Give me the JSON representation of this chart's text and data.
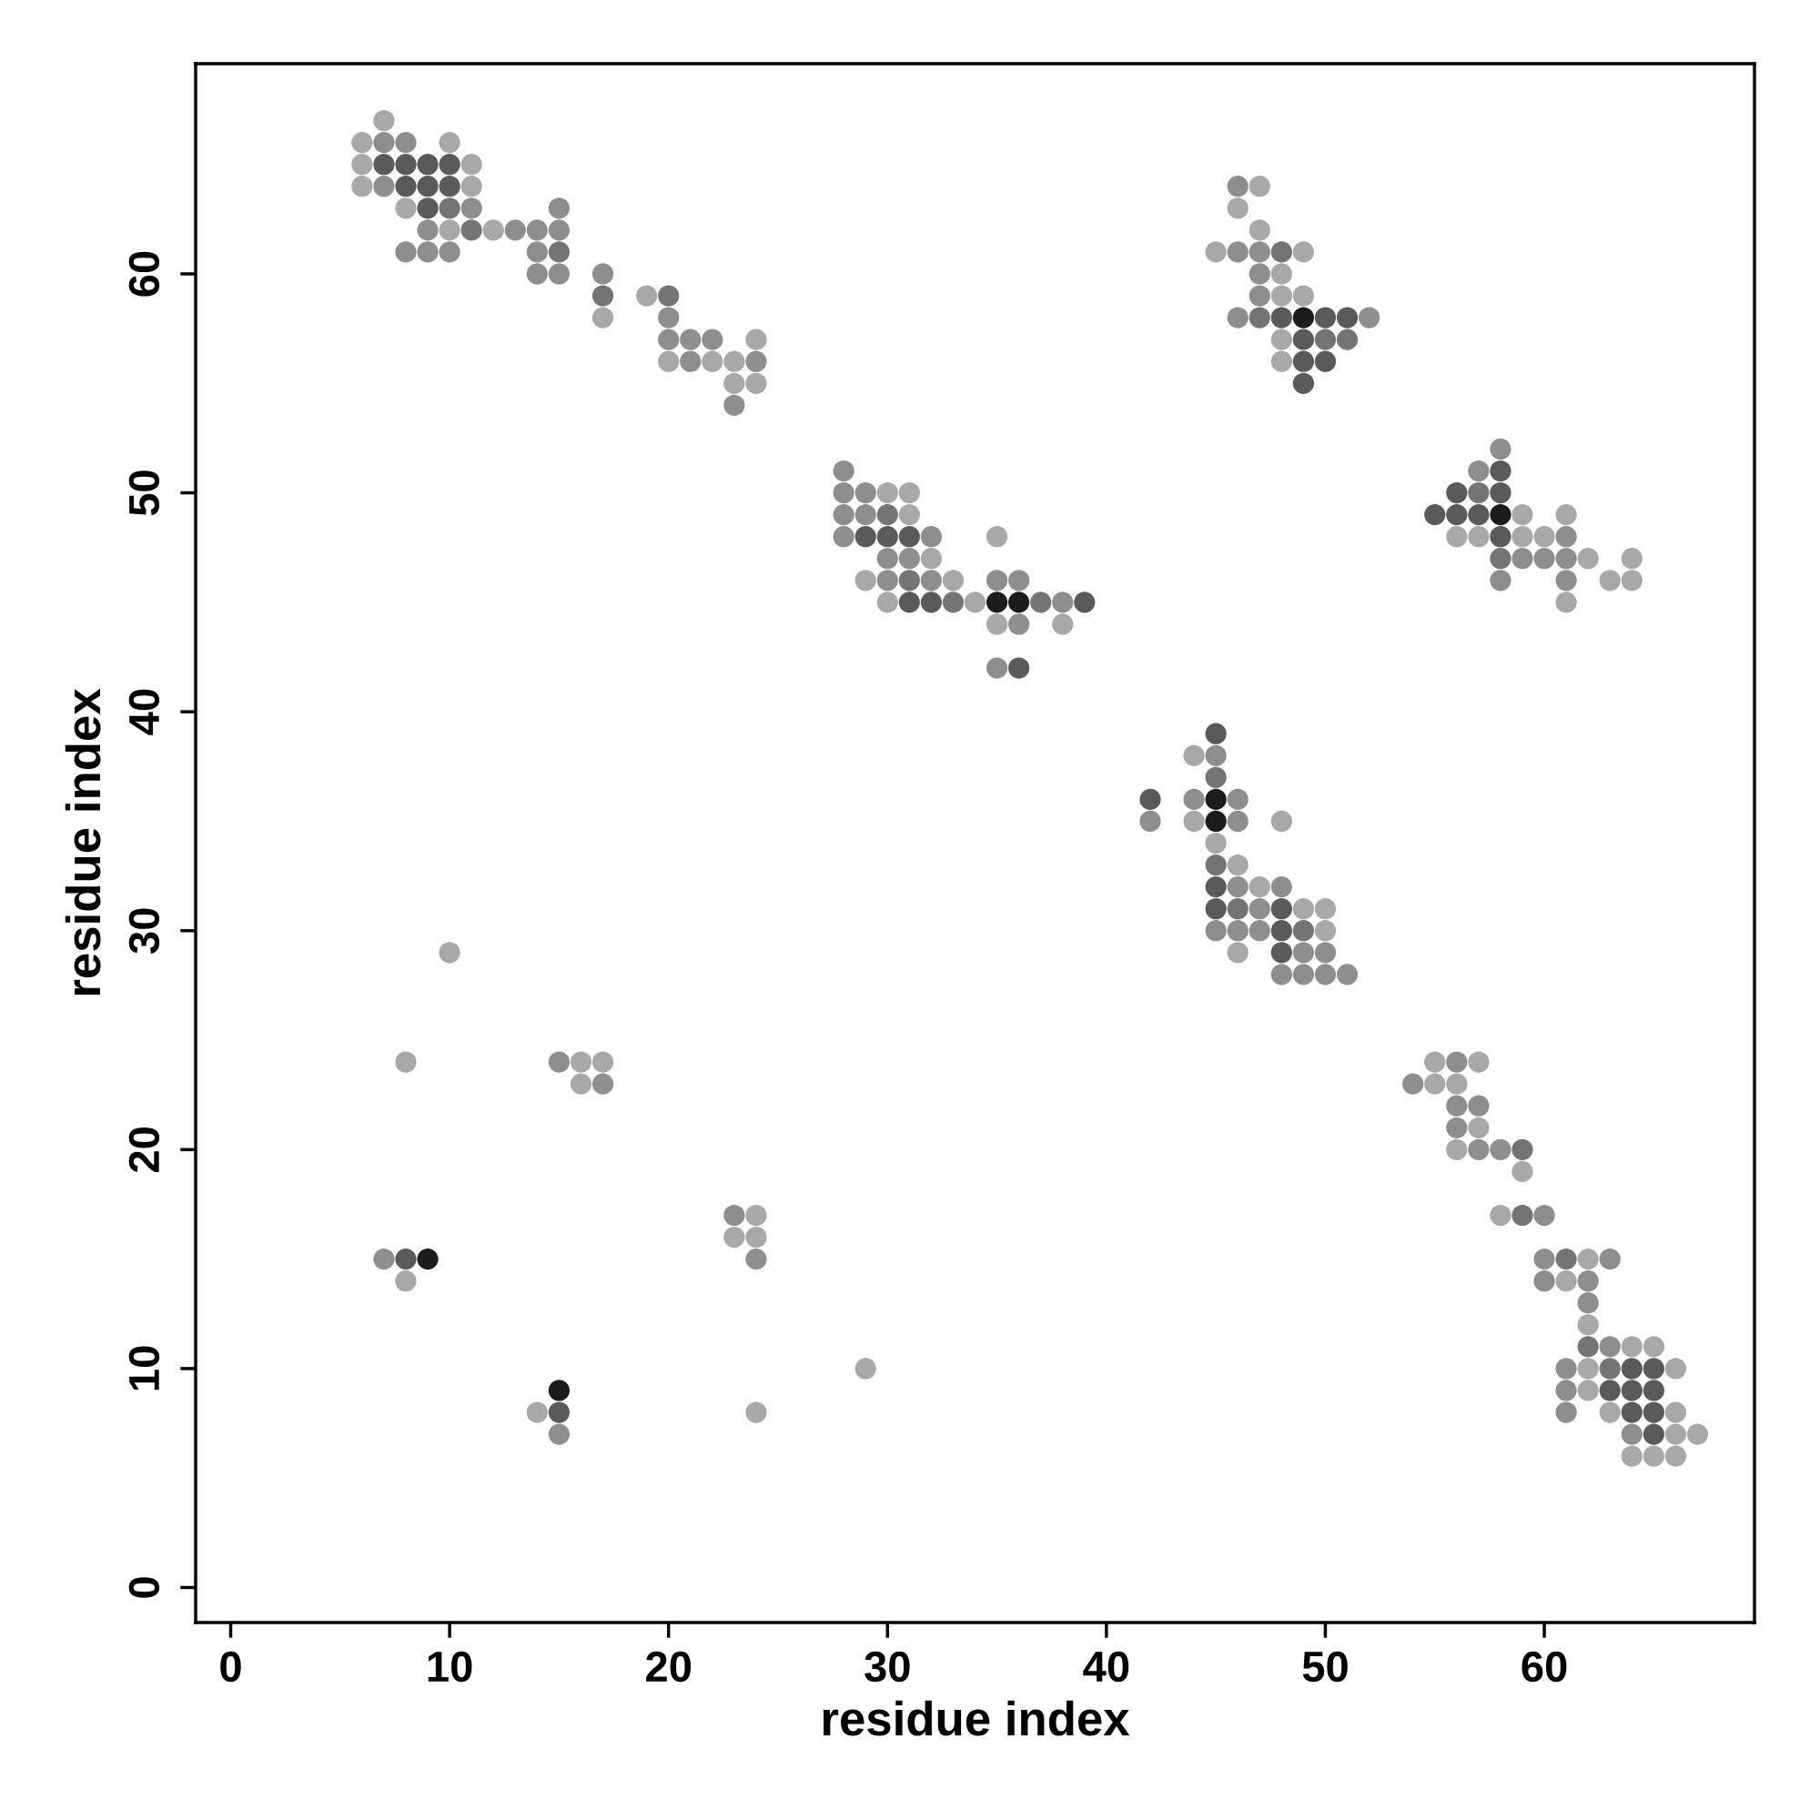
{
  "chart_data": {
    "type": "scatter",
    "xlabel": "residue index",
    "ylabel": "residue index",
    "xlim": [
      -1.6,
      69.6
    ],
    "ylim": [
      -1.6,
      69.6
    ],
    "xticks": [
      0,
      10,
      20,
      30,
      40,
      50,
      60
    ],
    "yticks": [
      0,
      10,
      20,
      30,
      40,
      50,
      60
    ],
    "grid": false,
    "marker": "circle",
    "series": [
      {
        "color": "#a8a8a8",
        "x": [
          7,
          6,
          10,
          6,
          11,
          6,
          11,
          8,
          10,
          12,
          19,
          17,
          24,
          20,
          22,
          23,
          23,
          24,
          30,
          31,
          31,
          32,
          29,
          33,
          35,
          30,
          34,
          35,
          38,
          47,
          46,
          47,
          45,
          49,
          48,
          48,
          49,
          48,
          48,
          59,
          61,
          56,
          57,
          59,
          60,
          62,
          64,
          63,
          64,
          61,
          44,
          44,
          48,
          45,
          46,
          47,
          49,
          50,
          50,
          46,
          55,
          57,
          55,
          56,
          57,
          56,
          59,
          58,
          62,
          61,
          62,
          64,
          65,
          62,
          66,
          62,
          63,
          66,
          66,
          67,
          64,
          65,
          66,
          10,
          8,
          16,
          17,
          16,
          24,
          23,
          24,
          8,
          29,
          14,
          24
        ],
        "values": [
          67,
          66,
          66,
          65,
          65,
          64,
          64,
          63,
          62,
          62,
          59,
          58,
          57,
          56,
          56,
          56,
          55,
          55,
          50,
          50,
          49,
          47,
          46,
          46,
          48,
          45,
          45,
          44,
          44,
          64,
          63,
          62,
          61,
          61,
          60,
          59,
          59,
          57,
          56,
          49,
          49,
          48,
          48,
          48,
          48,
          47,
          47,
          46,
          46,
          45,
          38,
          35,
          35,
          34,
          33,
          32,
          31,
          31,
          30,
          29,
          24,
          24,
          23,
          23,
          21,
          20,
          19,
          17,
          15,
          14,
          12,
          11,
          11,
          10,
          10,
          9,
          8,
          8,
          7,
          7,
          6,
          6,
          6,
          29,
          24,
          24,
          24,
          23,
          17,
          16,
          16,
          14,
          10,
          8,
          8
        ]
      },
      {
        "color": "#8e8e8e",
        "x": [
          7,
          8,
          7,
          11,
          15,
          9,
          13,
          14,
          15,
          8,
          9,
          10,
          14,
          14,
          15,
          17,
          20,
          20,
          21,
          22,
          21,
          24,
          23,
          28,
          28,
          29,
          28,
          29,
          28,
          32,
          30,
          31,
          30,
          32,
          35,
          36,
          38,
          36,
          35,
          46,
          46,
          47,
          47,
          47,
          46,
          52,
          58,
          57,
          61,
          59,
          60,
          61,
          58,
          61,
          45,
          44,
          46,
          42,
          46,
          46,
          48,
          47,
          45,
          46,
          47,
          49,
          50,
          48,
          49,
          50,
          51,
          56,
          54,
          56,
          57,
          56,
          57,
          58,
          60,
          60,
          63,
          60,
          62,
          62,
          63,
          61,
          61,
          61,
          64,
          15,
          17,
          23,
          7,
          24,
          15
        ],
        "values": [
          66,
          66,
          64,
          63,
          63,
          62,
          62,
          62,
          62,
          61,
          61,
          61,
          61,
          60,
          60,
          60,
          58,
          57,
          57,
          57,
          56,
          56,
          54,
          51,
          50,
          50,
          49,
          49,
          48,
          48,
          47,
          47,
          46,
          46,
          46,
          46,
          45,
          44,
          42,
          64,
          61,
          61,
          60,
          59,
          58,
          58,
          52,
          51,
          48,
          47,
          47,
          47,
          46,
          46,
          38,
          36,
          36,
          35,
          35,
          32,
          32,
          31,
          30,
          30,
          30,
          29,
          29,
          28,
          28,
          28,
          28,
          24,
          23,
          22,
          22,
          21,
          20,
          20,
          17,
          15,
          15,
          14,
          14,
          13,
          11,
          10,
          9,
          8,
          7,
          24,
          23,
          17,
          15,
          15,
          7
        ]
      },
      {
        "color": "#747474",
        "x": [
          10,
          11,
          15,
          17,
          20,
          30,
          31,
          33,
          37,
          48,
          47,
          50,
          51,
          57,
          58,
          45,
          45,
          46,
          49,
          62,
          63,
          59,
          59,
          61
        ],
        "values": [
          63,
          62,
          61,
          59,
          59,
          49,
          46,
          45,
          45,
          61,
          58,
          57,
          57,
          50,
          47,
          37,
          33,
          31,
          30,
          11,
          10,
          20,
          17,
          15
        ]
      },
      {
        "color": "#5a5a5a",
        "x": [
          7,
          8,
          9,
          10,
          8,
          9,
          10,
          9,
          29,
          30,
          31,
          31,
          32,
          39,
          36,
          48,
          50,
          51,
          49,
          49,
          50,
          49,
          58,
          56,
          58,
          55,
          56,
          57,
          58,
          45,
          42,
          45,
          45,
          48,
          48,
          48,
          64,
          65,
          63,
          64,
          65,
          64,
          65,
          65,
          8,
          15
        ],
        "values": [
          65,
          65,
          65,
          65,
          64,
          64,
          64,
          63,
          48,
          48,
          48,
          45,
          45,
          45,
          42,
          58,
          58,
          58,
          57,
          56,
          56,
          55,
          51,
          50,
          50,
          49,
          49,
          49,
          48,
          39,
          36,
          32,
          31,
          31,
          30,
          29,
          10,
          10,
          9,
          9,
          9,
          8,
          8,
          7,
          15,
          8
        ]
      },
      {
        "color": "#1c1c1c",
        "x": [
          35,
          36,
          49,
          58,
          45,
          45,
          9,
          15
        ],
        "values": [
          45,
          45,
          58,
          49,
          36,
          35,
          15,
          9
        ]
      }
    ]
  }
}
